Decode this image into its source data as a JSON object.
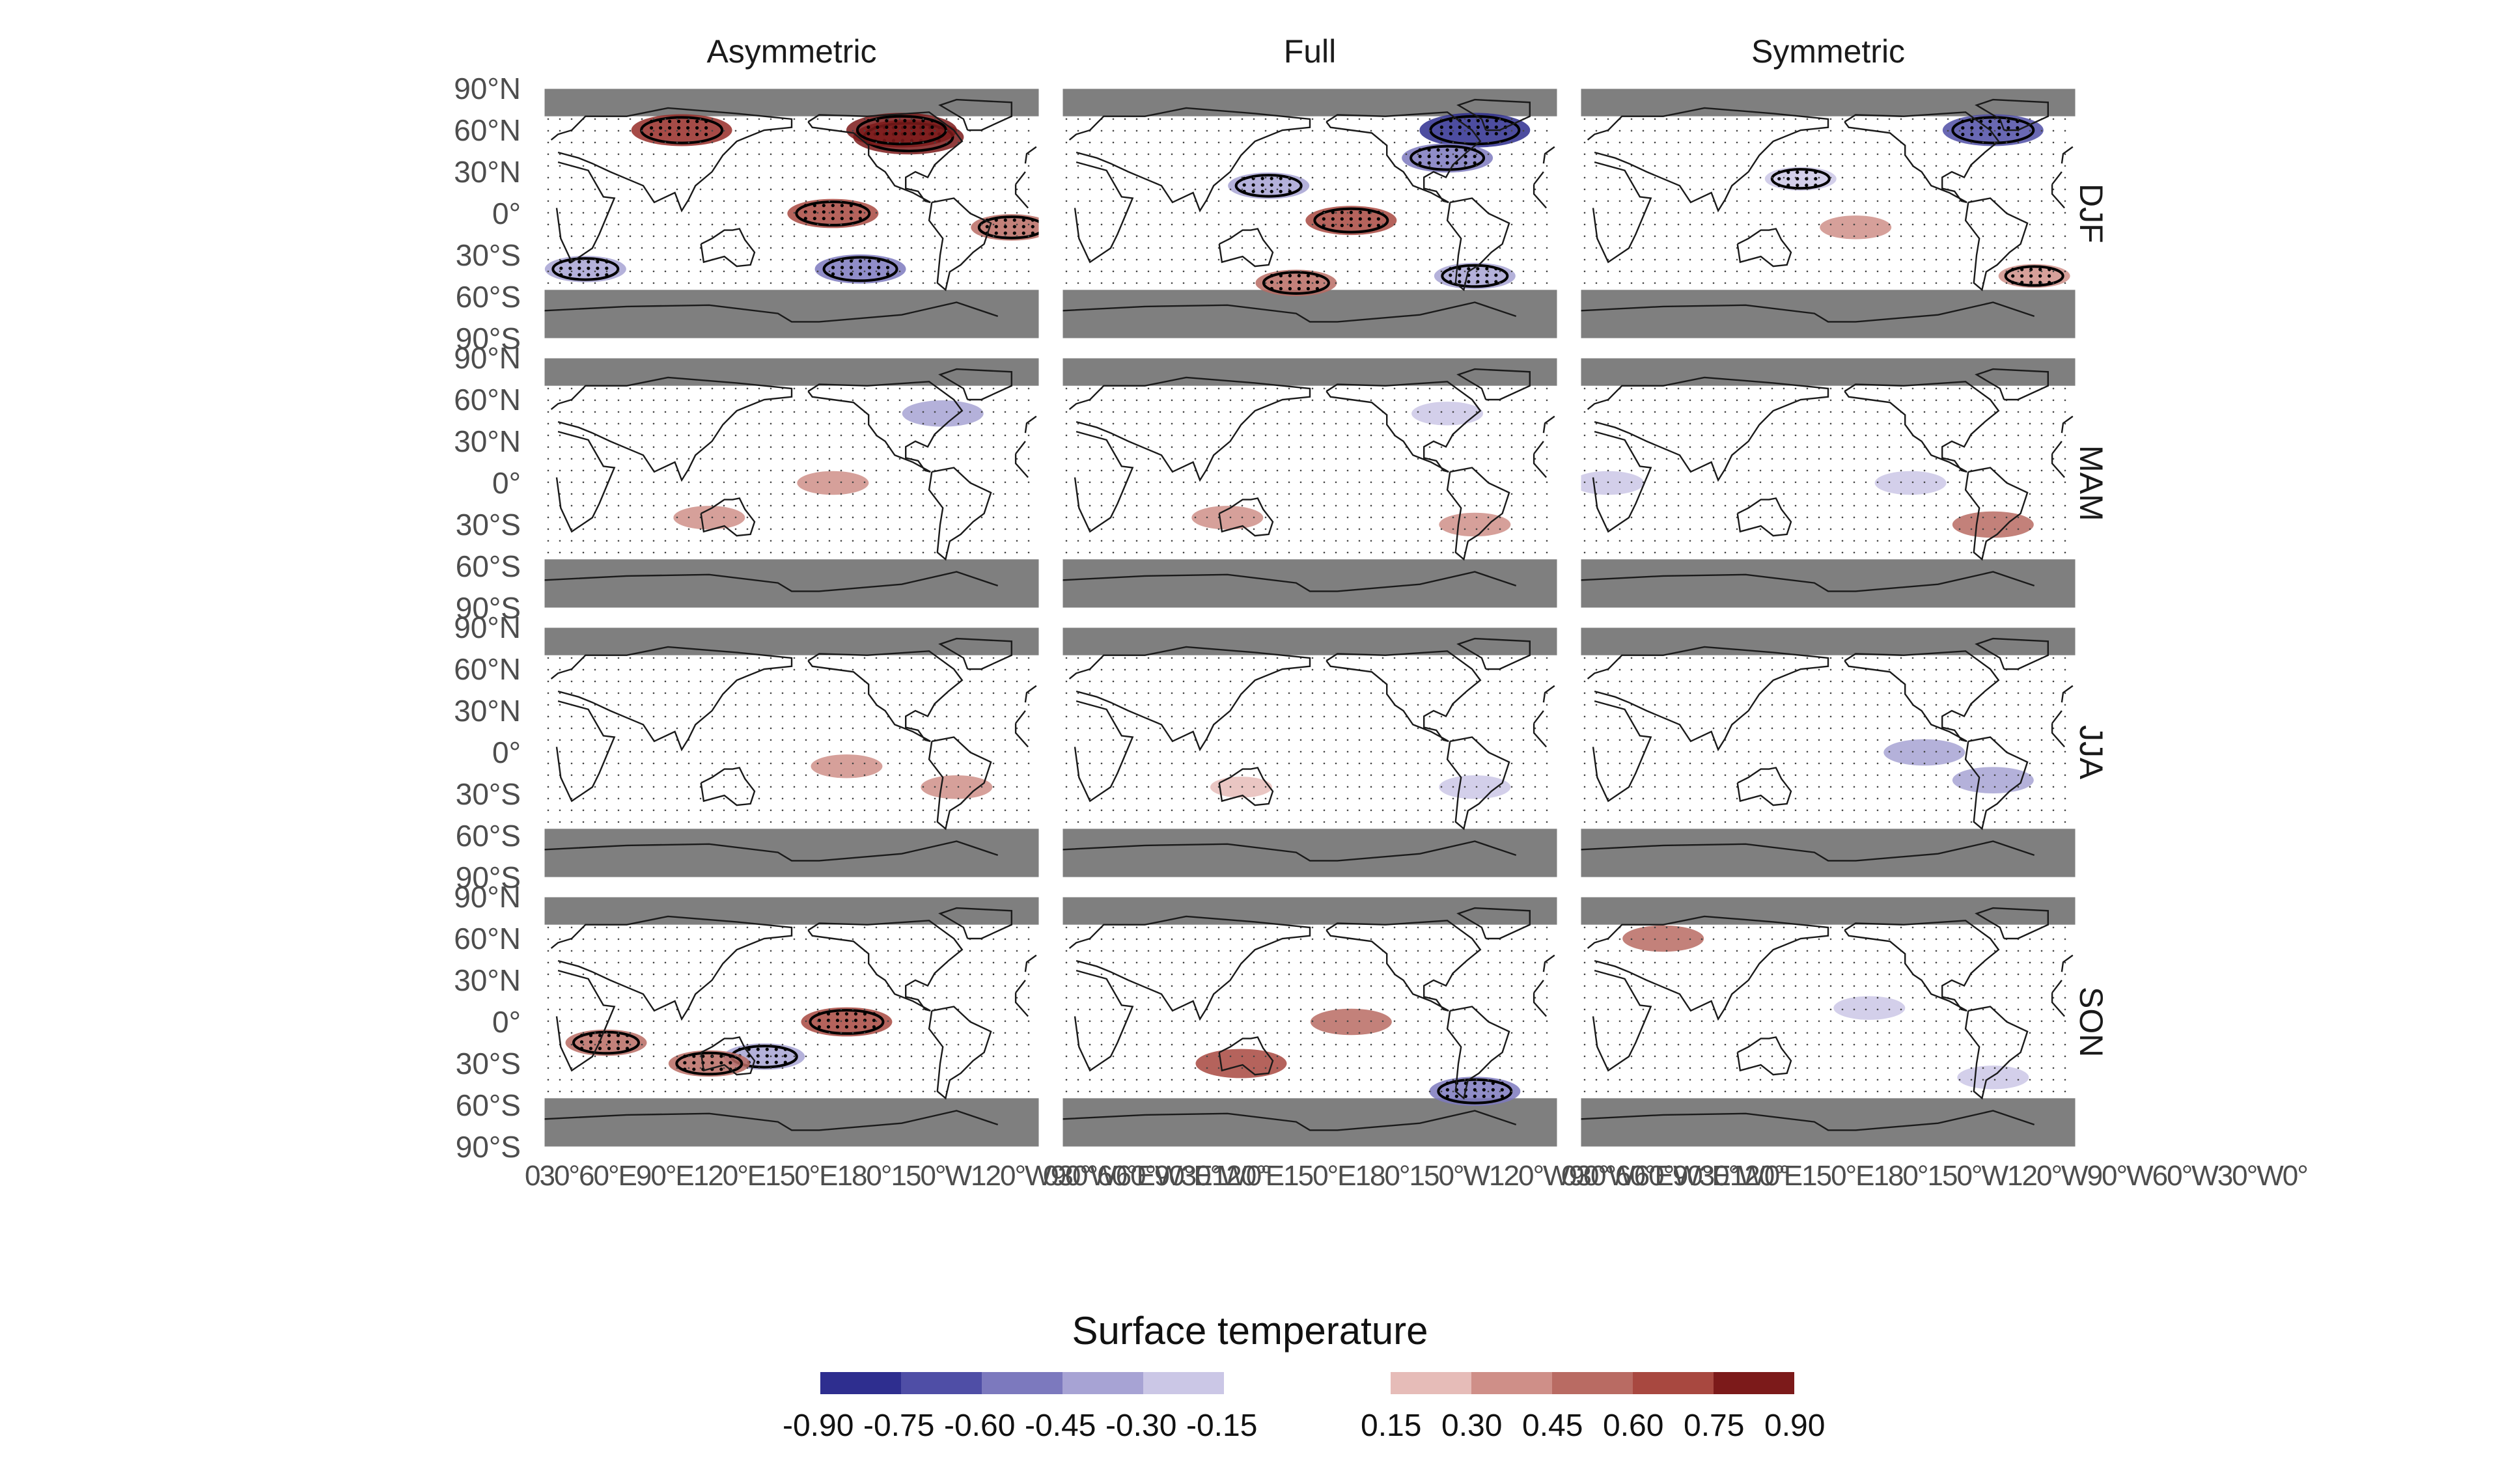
{
  "legend": {
    "title": "Surface temperature",
    "negative": [
      {
        "value": "-0.90",
        "color": "#2e2e8f"
      },
      {
        "value": "-0.75",
        "color": "#4f4ea6"
      },
      {
        "value": "-0.60",
        "color": "#7c79be"
      },
      {
        "value": "-0.45",
        "color": "#a7a3d4"
      },
      {
        "value": "-0.30",
        "color": "#cbc7e6"
      },
      {
        "value": "-0.15",
        "color": "#e9e7f4"
      }
    ],
    "positive": [
      {
        "value": "0.15",
        "color": "#e6bcb8"
      },
      {
        "value": "0.30",
        "color": "#cf8f88"
      },
      {
        "value": "0.45",
        "color": "#b96b63"
      },
      {
        "value": "0.60",
        "color": "#a84840"
      },
      {
        "value": "0.75",
        "color": "#962c27"
      },
      {
        "value": "0.90",
        "color": "#7c1a1a"
      }
    ]
  },
  "columns": [
    "Asymmetric",
    "Full",
    "Symmetric"
  ],
  "rows": [
    "DJF",
    "MAM",
    "JJA",
    "SON"
  ],
  "y_ticks": [
    "90°N",
    "60°N",
    "30°N",
    "0°",
    "30°S",
    "60°S",
    "90°S"
  ],
  "x_ticks": [
    "0",
    "30",
    "60°E",
    "90°E",
    "120°E",
    "150°E",
    "180°",
    "150°W",
    "120°W",
    "90°W",
    "60°W",
    "30°W",
    "0°"
  ],
  "x_tick_text": "030°60°E90°E120°E150°E180°150°W120°W90°W60°W30°W0°",
  "colors": {
    "masked": "#7f7f7f",
    "contour": "#000000",
    "coast": "#1a1a1a"
  },
  "chart_data": {
    "type": "heatmap",
    "variable": "Surface temperature",
    "facets": [
      {
        "season": "DJF",
        "composite": "Asymmetric",
        "anomalies": [
          {
            "lon": -95,
            "lat": 55,
            "value": 0.9,
            "significant": true
          },
          {
            "lon": -100,
            "lat": 60,
            "value": 0.9,
            "significant": true
          },
          {
            "lon": 100,
            "lat": 60,
            "value": 0.75,
            "significant": true
          },
          {
            "lon": -150,
            "lat": 0,
            "value": 0.6,
            "significant": true
          },
          {
            "lon": -20,
            "lat": -10,
            "value": 0.45,
            "significant": true
          },
          {
            "lon": 30,
            "lat": -40,
            "value": -0.45,
            "significant": true
          },
          {
            "lon": -130,
            "lat": -40,
            "value": -0.6,
            "significant": true
          }
        ]
      },
      {
        "season": "DJF",
        "composite": "Full",
        "anomalies": [
          {
            "lon": -60,
            "lat": 60,
            "value": -0.9,
            "significant": true
          },
          {
            "lon": -80,
            "lat": 40,
            "value": -0.6,
            "significant": true
          },
          {
            "lon": 150,
            "lat": 20,
            "value": -0.45,
            "significant": true
          },
          {
            "lon": -150,
            "lat": -5,
            "value": 0.6,
            "significant": true
          },
          {
            "lon": -60,
            "lat": -45,
            "value": -0.45,
            "significant": true
          },
          {
            "lon": 170,
            "lat": -50,
            "value": 0.45,
            "significant": true
          }
        ]
      },
      {
        "season": "DJF",
        "composite": "Symmetric",
        "anomalies": [
          {
            "lon": -60,
            "lat": 60,
            "value": -0.75,
            "significant": true
          },
          {
            "lon": 160,
            "lat": 25,
            "value": -0.3,
            "significant": true
          },
          {
            "lon": -160,
            "lat": -10,
            "value": 0.3,
            "significant": false
          },
          {
            "lon": -30,
            "lat": -45,
            "value": 0.3,
            "significant": true
          }
        ]
      },
      {
        "season": "MAM",
        "composite": "Asymmetric",
        "anomalies": [
          {
            "lon": -70,
            "lat": 50,
            "value": -0.45,
            "significant": false
          },
          {
            "lon": 120,
            "lat": -25,
            "value": 0.3,
            "significant": false
          },
          {
            "lon": -150,
            "lat": 0,
            "value": 0.3,
            "significant": false
          }
        ]
      },
      {
        "season": "MAM",
        "composite": "Full",
        "anomalies": [
          {
            "lon": 120,
            "lat": -25,
            "value": 0.3,
            "significant": false
          },
          {
            "lon": -80,
            "lat": 50,
            "value": -0.3,
            "significant": false
          },
          {
            "lon": -60,
            "lat": -30,
            "value": 0.3,
            "significant": false
          }
        ]
      },
      {
        "season": "MAM",
        "composite": "Symmetric",
        "anomalies": [
          {
            "lon": 20,
            "lat": 0,
            "value": -0.3,
            "significant": false
          },
          {
            "lon": -120,
            "lat": 0,
            "value": -0.3,
            "significant": false
          },
          {
            "lon": -60,
            "lat": -30,
            "value": 0.45,
            "significant": false
          }
        ]
      },
      {
        "season": "JJA",
        "composite": "Asymmetric",
        "anomalies": [
          {
            "lon": -140,
            "lat": -10,
            "value": 0.3,
            "significant": false
          },
          {
            "lon": -60,
            "lat": -25,
            "value": 0.3,
            "significant": false
          }
        ]
      },
      {
        "season": "JJA",
        "composite": "Full",
        "anomalies": [
          {
            "lon": 130,
            "lat": -25,
            "value": 0.15,
            "significant": false
          },
          {
            "lon": -60,
            "lat": -25,
            "value": -0.3,
            "significant": false
          }
        ]
      },
      {
        "season": "JJA",
        "composite": "Symmetric",
        "anomalies": [
          {
            "lon": -110,
            "lat": 0,
            "value": -0.45,
            "significant": false
          },
          {
            "lon": -60,
            "lat": -20,
            "value": -0.45,
            "significant": false
          }
        ]
      },
      {
        "season": "SON",
        "composite": "Asymmetric",
        "anomalies": [
          {
            "lon": -140,
            "lat": 0,
            "value": 0.6,
            "significant": true
          },
          {
            "lon": 160,
            "lat": -25,
            "value": -0.45,
            "significant": true
          },
          {
            "lon": 120,
            "lat": -30,
            "value": 0.45,
            "significant": true
          },
          {
            "lon": 45,
            "lat": -15,
            "value": 0.45,
            "significant": true
          }
        ]
      },
      {
        "season": "SON",
        "composite": "Full",
        "anomalies": [
          {
            "lon": -150,
            "lat": 0,
            "value": 0.45,
            "significant": false
          },
          {
            "lon": 130,
            "lat": -30,
            "value": 0.6,
            "significant": false
          },
          {
            "lon": -60,
            "lat": -50,
            "value": -0.6,
            "significant": true
          }
        ]
      },
      {
        "season": "SON",
        "composite": "Symmetric",
        "anomalies": [
          {
            "lon": 60,
            "lat": 60,
            "value": 0.45,
            "significant": false
          },
          {
            "lon": -150,
            "lat": 10,
            "value": -0.3,
            "significant": false
          },
          {
            "lon": -60,
            "lat": -40,
            "value": -0.3,
            "significant": false
          }
        ]
      }
    ]
  }
}
